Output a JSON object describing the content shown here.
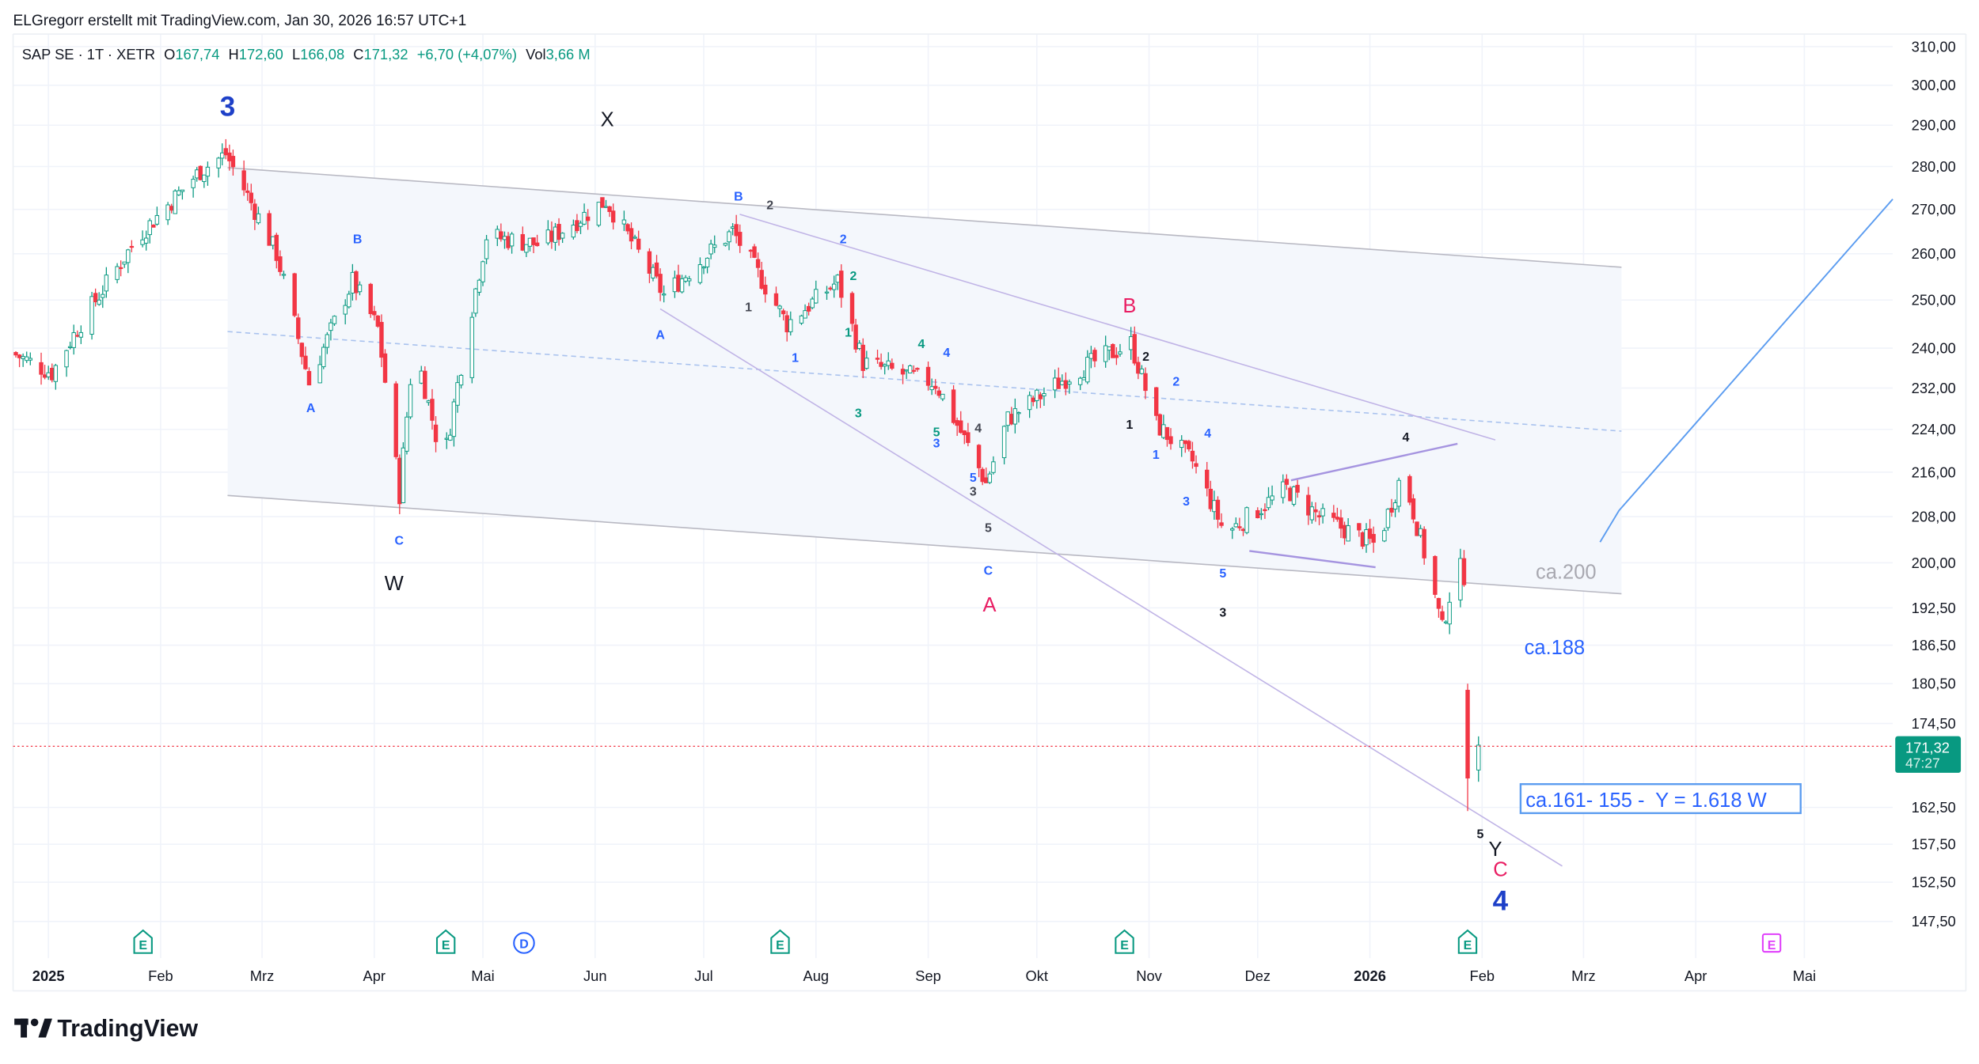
{
  "header": {
    "attribution": "ELGregorr erstellt mit TradingView.com, Jan 30, 2026 16:57 UTC+1",
    "symbol": "SAP SE · 1T · XETR",
    "o_label": "O",
    "o_value": "167,74",
    "h_label": "H",
    "h_value": "172,60",
    "l_label": "L",
    "l_value": "166,08",
    "c_label": "C",
    "c_value": "171,32",
    "change": "+6,70 (+4,07%)",
    "vol_label": "Vol",
    "vol_value": "3,66 M"
  },
  "price_tag": {
    "price": "171,32",
    "countdown": "47:27"
  },
  "logo": "TradingView",
  "colors": {
    "up": "#089981",
    "down": "#f23645",
    "accent_blue": "#2962ff",
    "wave_red": "#e91e63",
    "wave_dark_blue": "#1e40c8"
  },
  "annotations": {
    "ca200": "ca.200",
    "ca188": "ca.188",
    "target_box": "ca.161- 155 -  Y = 1.618 W"
  },
  "wave_labels": [
    "3",
    "X",
    "W",
    "A",
    "B",
    "C",
    "Y",
    "4",
    "5",
    "B",
    "A",
    "C",
    "A",
    "B",
    "2",
    "1",
    "4",
    "5",
    "3",
    "5",
    "3",
    "5",
    "C",
    "4",
    "2",
    "1",
    "2",
    "1",
    "3",
    "4",
    "2",
    "1",
    "2",
    "4",
    "1",
    "3",
    "5",
    "3",
    "4"
  ],
  "events": [
    {
      "type": "E",
      "kind": "earnings"
    },
    {
      "type": "E",
      "kind": "earnings"
    },
    {
      "type": "D",
      "kind": "dividend"
    },
    {
      "type": "E",
      "kind": "earnings"
    },
    {
      "type": "E",
      "kind": "earnings"
    },
    {
      "type": "E",
      "kind": "earnings"
    },
    {
      "type": "E",
      "kind": "earnings-upcoming"
    }
  ],
  "chart_data": {
    "type": "candlestick",
    "title": "SAP SE · 1T · XETR",
    "y_scale": "log",
    "ylim": [
      145,
      315
    ],
    "y_ticks": [
      "310,00",
      "300,00",
      "290,00",
      "280,00",
      "270,00",
      "260,00",
      "250,00",
      "240,00",
      "232,00",
      "224,00",
      "216,00",
      "208,00",
      "200,00",
      "192,50",
      "186,50",
      "180,50",
      "174,50",
      "162,50",
      "157,50",
      "152,50",
      "147,50"
    ],
    "y_tick_values": [
      310,
      300,
      290,
      280,
      270,
      260,
      250,
      240,
      232,
      224,
      216,
      208,
      200,
      192.5,
      186.5,
      180.5,
      174.5,
      162.5,
      157.5,
      152.5,
      147.5
    ],
    "x_ticks": [
      "2025",
      "Feb",
      "Mrz",
      "Apr",
      "Mai",
      "Jun",
      "Jul",
      "Aug",
      "Sep",
      "Okt",
      "Nov",
      "Dez",
      "2026",
      "Feb",
      "Mrz",
      "Apr",
      "Mai"
    ],
    "x_tick_days": [
      0,
      31,
      59,
      90,
      120,
      151,
      181,
      212,
      243,
      273,
      304,
      334,
      365,
      396,
      424,
      455,
      485
    ],
    "close_waypoints_day_price": [
      [
        -10,
        239
      ],
      [
        1,
        235
      ],
      [
        8,
        244
      ],
      [
        25,
        264
      ],
      [
        42,
        279
      ],
      [
        49,
        283
      ],
      [
        63,
        260
      ],
      [
        72,
        233
      ],
      [
        84,
        254
      ],
      [
        91,
        244
      ],
      [
        97,
        212
      ],
      [
        101,
        241
      ],
      [
        109,
        217
      ],
      [
        121,
        264
      ],
      [
        136,
        262
      ],
      [
        154,
        272
      ],
      [
        170,
        251
      ],
      [
        189,
        265
      ],
      [
        204,
        245
      ],
      [
        218,
        254
      ],
      [
        225,
        237
      ],
      [
        245,
        233
      ],
      [
        259,
        214
      ],
      [
        265,
        226
      ],
      [
        283,
        235
      ],
      [
        299,
        241
      ],
      [
        306,
        225
      ],
      [
        316,
        218
      ],
      [
        325,
        205
      ],
      [
        342,
        213
      ],
      [
        351,
        208
      ],
      [
        367,
        203
      ],
      [
        374,
        216
      ],
      [
        382,
        197
      ],
      [
        385,
        189
      ],
      [
        389,
        200
      ],
      [
        391,
        198
      ]
    ],
    "last_candles": [
      {
        "day": 392,
        "o": 179.5,
        "h": 180.5,
        "l": 162.0,
        "c": 166.6
      },
      {
        "day": 395,
        "o": 167.74,
        "h": 172.6,
        "l": 166.08,
        "c": 171.32
      }
    ],
    "last_price": 171.32
  }
}
